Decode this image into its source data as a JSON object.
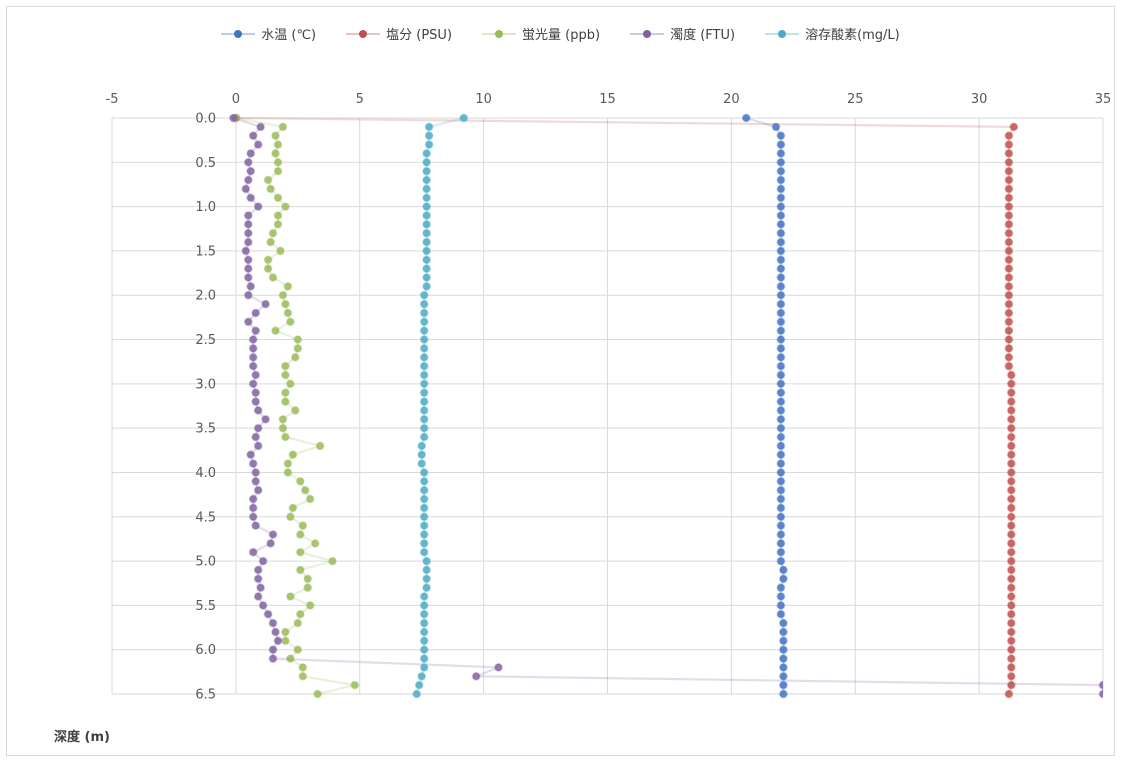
{
  "chart_data": {
    "type": "scatter",
    "title": "",
    "xlim": [
      -5,
      35
    ],
    "xticks": [
      "-5",
      "0",
      "5",
      "10",
      "15",
      "20",
      "25",
      "30",
      "35"
    ],
    "ylim": [
      0,
      6.5
    ],
    "y_reversed": true,
    "yticks": [
      "0.0",
      "0.5",
      "1.0",
      "1.5",
      "2.0",
      "2.5",
      "3.0",
      "3.5",
      "4.0",
      "4.5",
      "5.0",
      "5.5",
      "6.0",
      "6.5"
    ],
    "ylabel": "深度 (m)",
    "xlabel": "",
    "grid": true,
    "legend_position": "top",
    "depth": [
      0.0,
      0.1,
      0.2,
      0.3,
      0.4,
      0.5,
      0.6,
      0.7,
      0.8,
      0.9,
      1.0,
      1.1,
      1.2,
      1.3,
      1.4,
      1.5,
      1.6,
      1.7,
      1.8,
      1.9,
      2.0,
      2.1,
      2.2,
      2.3,
      2.4,
      2.5,
      2.6,
      2.7,
      2.8,
      2.9,
      3.0,
      3.1,
      3.2,
      3.3,
      3.4,
      3.5,
      3.6,
      3.7,
      3.8,
      3.9,
      4.0,
      4.1,
      4.2,
      4.3,
      4.4,
      4.5,
      4.6,
      4.7,
      4.8,
      4.9,
      5.0,
      5.1,
      5.2,
      5.3,
      5.4,
      5.5,
      5.6,
      5.7,
      5.8,
      5.9,
      6.0,
      6.1,
      6.2,
      6.3,
      6.4,
      6.5
    ],
    "series": [
      {
        "name": "水温 (℃)",
        "color": "#4472c4",
        "x": [
          20.6,
          21.8,
          22.0,
          22.0,
          22.0,
          22.0,
          22.0,
          22.0,
          22.0,
          22.0,
          22.0,
          22.0,
          22.0,
          22.0,
          22.0,
          22.0,
          22.0,
          22.0,
          22.0,
          22.0,
          22.0,
          22.0,
          22.0,
          22.0,
          22.0,
          22.0,
          22.0,
          22.0,
          22.0,
          22.0,
          22.0,
          22.0,
          22.0,
          22.0,
          22.0,
          22.0,
          22.0,
          22.0,
          22.0,
          22.0,
          22.0,
          22.0,
          22.0,
          22.0,
          22.0,
          22.0,
          22.0,
          22.0,
          22.0,
          22.0,
          22.0,
          22.1,
          22.1,
          22.0,
          22.0,
          22.0,
          22.0,
          22.1,
          22.1,
          22.1,
          22.1,
          22.1,
          22.1,
          22.1,
          22.1,
          22.1
        ],
        "y_from": "depth"
      },
      {
        "name": "塩分 (PSU)",
        "color": "#c0504d",
        "x": [
          0.0,
          31.4,
          31.2,
          31.2,
          31.2,
          31.2,
          31.2,
          31.2,
          31.2,
          31.2,
          31.2,
          31.2,
          31.2,
          31.2,
          31.2,
          31.2,
          31.2,
          31.2,
          31.2,
          31.2,
          31.2,
          31.2,
          31.2,
          31.2,
          31.2,
          31.2,
          31.2,
          31.2,
          31.2,
          31.3,
          31.3,
          31.3,
          31.3,
          31.3,
          31.3,
          31.3,
          31.3,
          31.3,
          31.3,
          31.3,
          31.3,
          31.3,
          31.3,
          31.3,
          31.3,
          31.3,
          31.3,
          31.3,
          31.3,
          31.3,
          31.3,
          31.3,
          31.3,
          31.3,
          31.3,
          31.3,
          31.3,
          31.3,
          31.3,
          31.3,
          31.3,
          31.3,
          31.3,
          31.3,
          31.3,
          31.2
        ],
        "y_from": "depth"
      },
      {
        "name": "蛍光量 (ppb)",
        "color": "#9bbb59",
        "x": [
          0.0,
          1.9,
          1.6,
          1.7,
          1.6,
          1.7,
          1.7,
          1.3,
          1.4,
          1.7,
          2.0,
          1.7,
          1.7,
          1.5,
          1.4,
          1.8,
          1.3,
          1.3,
          1.5,
          2.1,
          1.9,
          2.0,
          2.1,
          2.2,
          1.6,
          2.5,
          2.5,
          2.4,
          2.0,
          2.0,
          2.2,
          2.0,
          2.0,
          2.4,
          1.9,
          1.9,
          2.0,
          3.4,
          2.3,
          2.1,
          2.1,
          2.6,
          2.8,
          3.0,
          2.3,
          2.2,
          2.7,
          2.6,
          3.2,
          2.6,
          3.9,
          2.6,
          2.9,
          2.9,
          2.2,
          3.0,
          2.6,
          2.5,
          2.0,
          2.0,
          2.5,
          2.2,
          2.7,
          2.7,
          4.8,
          3.3
        ],
        "y_from": "depth"
      },
      {
        "name": "濁度 (FTU)",
        "color": "#8064a2",
        "x": [
          -0.1,
          1.0,
          0.7,
          0.9,
          0.6,
          0.5,
          0.6,
          0.5,
          0.4,
          0.6,
          0.9,
          0.5,
          0.5,
          0.5,
          0.5,
          0.4,
          0.5,
          0.5,
          0.5,
          0.6,
          0.5,
          1.2,
          0.8,
          0.5,
          0.8,
          0.7,
          0.7,
          0.7,
          0.7,
          0.8,
          0.7,
          0.8,
          0.8,
          0.9,
          1.2,
          0.9,
          0.8,
          0.9,
          0.6,
          0.7,
          0.8,
          0.8,
          0.9,
          0.7,
          0.7,
          0.7,
          0.8,
          1.5,
          1.4,
          0.7,
          1.1,
          0.9,
          0.9,
          1.0,
          0.9,
          1.1,
          1.3,
          1.5,
          1.6,
          1.7,
          1.5,
          1.5,
          10.6,
          9.7,
          35.0,
          35.0
        ],
        "y_from": "depth"
      },
      {
        "name": "溶存酸素(mg/L)",
        "color": "#4bacc6",
        "x": [
          9.2,
          7.8,
          7.8,
          7.8,
          7.7,
          7.7,
          7.7,
          7.7,
          7.7,
          7.7,
          7.7,
          7.7,
          7.7,
          7.7,
          7.7,
          7.7,
          7.7,
          7.7,
          7.7,
          7.7,
          7.6,
          7.6,
          7.6,
          7.6,
          7.6,
          7.6,
          7.6,
          7.6,
          7.6,
          7.6,
          7.6,
          7.6,
          7.6,
          7.6,
          7.6,
          7.6,
          7.6,
          7.5,
          7.5,
          7.5,
          7.6,
          7.6,
          7.6,
          7.6,
          7.6,
          7.6,
          7.6,
          7.6,
          7.6,
          7.6,
          7.7,
          7.7,
          7.7,
          7.7,
          7.6,
          7.6,
          7.6,
          7.6,
          7.6,
          7.6,
          7.6,
          7.6,
          7.6,
          7.5,
          7.4,
          7.3
        ],
        "y_from": "depth"
      }
    ]
  }
}
